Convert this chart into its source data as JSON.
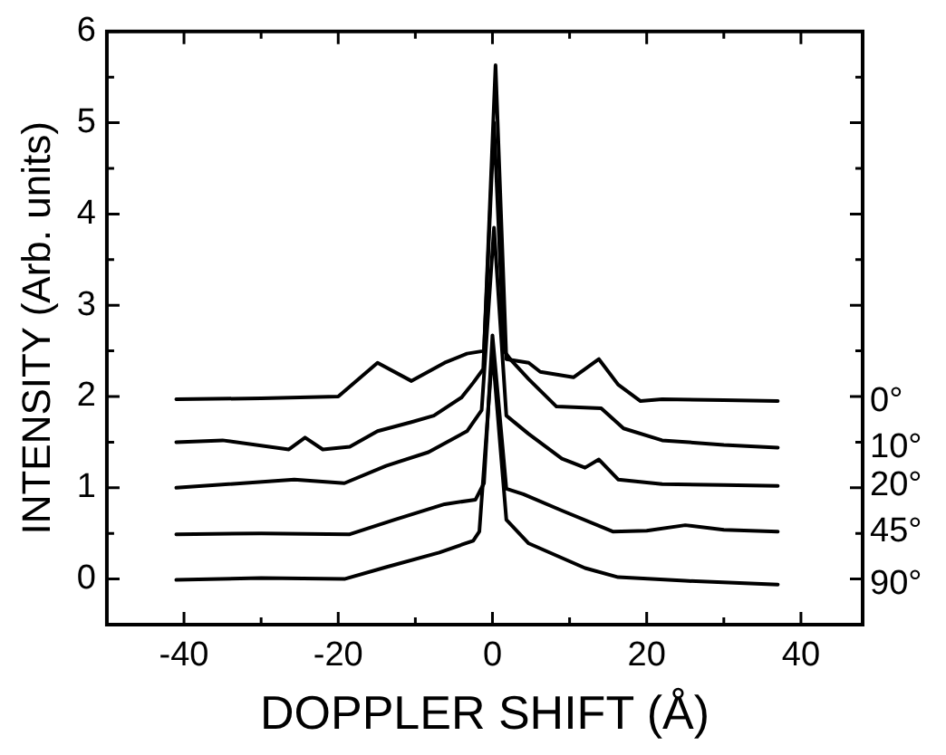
{
  "chart_data": {
    "type": "line",
    "xlabel": "DOPPLER SHIFT (Å)",
    "ylabel": "INTENSITY (Arb. units)",
    "xlim": [
      -50,
      48
    ],
    "ylim": [
      -0.5,
      6
    ],
    "xticks": [
      -40,
      {
        "value": -30,
        "label": null
      },
      -20,
      {
        "value": -10,
        "label": null
      },
      0,
      {
        "value": 10,
        "label": null
      },
      20,
      {
        "value": 30,
        "label": null
      },
      40
    ],
    "yticks": [
      {
        "value": -0.5,
        "label": null
      },
      0,
      {
        "value": 0.5,
        "label": null
      },
      1,
      {
        "value": 1.5,
        "label": null
      },
      2,
      {
        "value": 2.5,
        "label": null
      },
      3,
      {
        "value": 3.5,
        "label": null
      },
      4,
      {
        "value": 4.5,
        "label": null
      },
      5,
      {
        "value": 5.5,
        "label": null
      },
      6
    ],
    "grid": false,
    "legend": "right",
    "marker": "none",
    "line_style": "solid",
    "series": [
      {
        "name": "0°",
        "color": "#000000",
        "x": [
          -41,
          -30,
          -20,
          -14.9,
          -10.5,
          -6.2,
          -3.3,
          -1.1,
          0.4,
          1.8,
          4.7,
          6.2,
          10.5,
          13.8,
          16.3,
          19.2,
          22,
          30,
          37
        ],
        "values": [
          1.97,
          1.98,
          2.0,
          2.37,
          2.17,
          2.37,
          2.47,
          2.5,
          5.63,
          2.41,
          2.37,
          2.27,
          2.21,
          2.41,
          2.13,
          1.95,
          1.97,
          1.96,
          1.95
        ]
      },
      {
        "name": "10°",
        "color": "#000000",
        "x": [
          -41,
          -35,
          -26.4,
          -24.3,
          -22,
          -18.5,
          -14.9,
          -10.5,
          -7.6,
          -4,
          -2.5,
          -1.2,
          0.2,
          1.5,
          2.5,
          4.7,
          8.3,
          14.1,
          17,
          22,
          30,
          37
        ],
        "values": [
          1.5,
          1.52,
          1.42,
          1.55,
          1.42,
          1.45,
          1.62,
          1.72,
          1.79,
          1.99,
          2.15,
          2.3,
          5.0,
          2.5,
          2.39,
          2.19,
          1.89,
          1.87,
          1.65,
          1.52,
          1.47,
          1.44
        ]
      },
      {
        "name": "20°",
        "color": "#000000",
        "x": [
          -41,
          -25.7,
          -19.2,
          -13.8,
          -8.3,
          -3.3,
          -1.4,
          0.2,
          1.8,
          4.7,
          9,
          12,
          13.8,
          16.3,
          22,
          30,
          37
        ],
        "values": [
          1.0,
          1.09,
          1.05,
          1.24,
          1.39,
          1.62,
          1.85,
          3.85,
          1.79,
          1.59,
          1.32,
          1.22,
          1.31,
          1.09,
          1.04,
          1.03,
          1.02
        ]
      },
      {
        "name": "45°",
        "color": "#000000",
        "x": [
          -41,
          -30,
          -18.5,
          -12.7,
          -6.2,
          -2.2,
          -1.1,
          0,
          1.8,
          4,
          9,
          15.6,
          20,
          25,
          30,
          37
        ],
        "values": [
          0.49,
          0.5,
          0.49,
          0.65,
          0.82,
          0.87,
          1.05,
          2.67,
          0.99,
          0.93,
          0.75,
          0.52,
          0.53,
          0.59,
          0.54,
          0.52
        ]
      },
      {
        "name": "90°",
        "color": "#000000",
        "x": [
          -41,
          -30,
          -19.2,
          -13.8,
          -6.9,
          -2.5,
          -1.7,
          0,
          1.8,
          4.7,
          12,
          16.3,
          25,
          37
        ],
        "values": [
          -0.01,
          0.01,
          0,
          0.13,
          0.29,
          0.42,
          0.52,
          2.5,
          0.65,
          0.39,
          0.12,
          0.02,
          -0.02,
          -0.06
        ]
      }
    ]
  }
}
